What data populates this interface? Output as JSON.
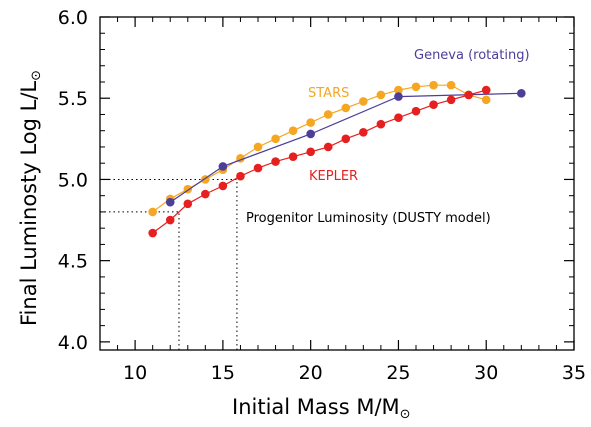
{
  "chart_data": {
    "type": "line",
    "title": "",
    "xlabel": "Initial Mass M/M",
    "ylabel": "Final Luminosty Log L/L",
    "label_symbol": "⊙",
    "xlim": [
      8,
      35
    ],
    "ylim": [
      3.95,
      6.0
    ],
    "x_ticks": [
      10,
      15,
      20,
      25,
      30,
      35
    ],
    "y_ticks": [
      4.0,
      4.5,
      5.0,
      5.5,
      6.0
    ],
    "x_tick_labels": [
      "10",
      "15",
      "20",
      "25",
      "30",
      "35"
    ],
    "y_tick_labels": [
      "4.0",
      "4.5",
      "5.0",
      "5.5",
      "6.0"
    ],
    "grid": false,
    "series": [
      {
        "name": "STARS",
        "color": "#f5a623",
        "x": [
          11,
          12,
          13,
          14,
          15,
          16,
          17,
          18,
          19,
          20,
          21,
          22,
          23,
          24,
          25,
          26,
          27,
          28,
          29,
          30
        ],
        "y": [
          4.8,
          4.88,
          4.94,
          5.0,
          5.06,
          5.13,
          5.2,
          5.25,
          5.3,
          5.35,
          5.4,
          5.44,
          5.48,
          5.52,
          5.55,
          5.57,
          5.58,
          5.58,
          5.52,
          5.49
        ]
      },
      {
        "name": "Geneva (rotating)",
        "color": "#4b3f99",
        "x": [
          12,
          15,
          20,
          25,
          32
        ],
        "y": [
          4.86,
          5.08,
          5.28,
          5.51,
          5.53
        ]
      },
      {
        "name": "KEPLER",
        "color": "#e62020",
        "x": [
          11,
          12,
          13,
          14,
          15,
          16,
          17,
          18,
          19,
          20,
          21,
          22,
          23,
          24,
          25,
          26,
          27,
          28,
          29,
          30
        ],
        "y": [
          4.67,
          4.75,
          4.85,
          4.91,
          4.96,
          5.02,
          5.07,
          5.11,
          5.14,
          5.17,
          5.2,
          5.25,
          5.29,
          5.34,
          5.38,
          5.42,
          5.46,
          5.49,
          5.52,
          5.55
        ]
      }
    ],
    "annotations": [
      {
        "text": "Progenitor Luminosity (DUSTY model)",
        "color": "#000000"
      }
    ],
    "reference_lines": {
      "horizontal": [
        5.0,
        4.8
      ],
      "vertical": [
        12.5,
        15.8
      ]
    }
  }
}
